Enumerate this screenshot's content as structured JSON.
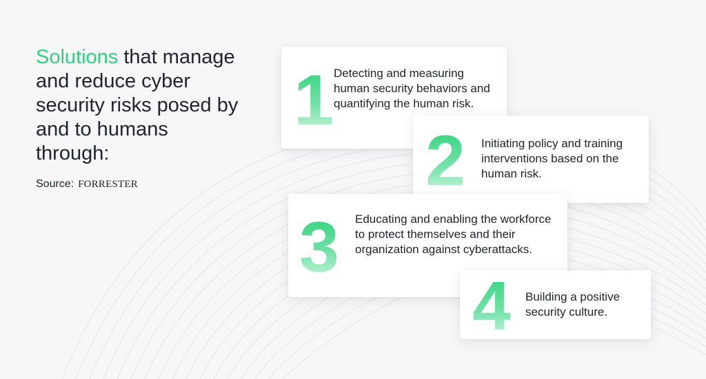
{
  "heading": {
    "accent": "Solutions",
    "rest": " that manage and reduce cyber security risks posed by and to humans through:"
  },
  "source": {
    "label": "Source:",
    "brand": "Forrester"
  },
  "items": [
    {
      "number": "1",
      "text": "Detecting and measuring human security behaviors and quantifying the human risk."
    },
    {
      "number": "2",
      "text": "Initiating policy and training interventions based on the human risk."
    },
    {
      "number": "3",
      "text": "Educating and enabling the workforce to protect themselves and their organization against cyberattacks."
    },
    {
      "number": "4",
      "text": "Building a positive security culture."
    }
  ],
  "colors": {
    "accent": "#2ed27e",
    "text": "#20242e",
    "background": "#f7f7f8"
  }
}
